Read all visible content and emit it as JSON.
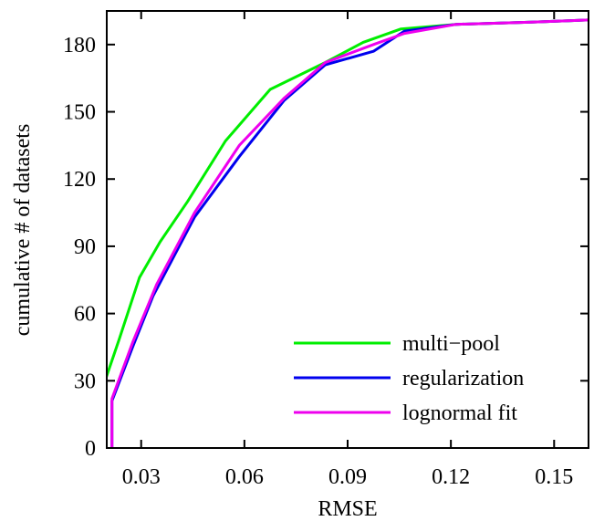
{
  "chart_data": {
    "type": "line",
    "title": "",
    "xlabel": "RMSE",
    "ylabel": "cumulative # of datasets",
    "xlim": [
      0.02,
      0.16
    ],
    "ylim": [
      0,
      195
    ],
    "xticks": [
      0.03,
      0.06,
      0.09,
      0.12,
      0.15
    ],
    "xtick_labels": [
      "0.03",
      "0.06",
      "0.09",
      "0.12",
      "0.15"
    ],
    "yticks": [
      0,
      30,
      60,
      90,
      120,
      150,
      180
    ],
    "ytick_labels": [
      "0",
      "30",
      "60",
      "90",
      "120",
      "150",
      "180"
    ],
    "grid": false,
    "legend_position": "bottom-right",
    "series": [
      {
        "name": "multi−pool",
        "color": "#00ee00",
        "x": [
          0.0175,
          0.0175,
          0.0235,
          0.0295,
          0.0355,
          0.0435,
          0.0545,
          0.0675,
          0.0835,
          0.0945,
          0.1055,
          0.1215,
          0.1435,
          0.1605
        ],
        "y": [
          0,
          21,
          48,
          76,
          92,
          110,
          137,
          160,
          172,
          181,
          187,
          189,
          190,
          191
        ]
      },
      {
        "name": "regularization",
        "color": "#0000ee",
        "x": [
          0.0215,
          0.0215,
          0.0275,
          0.0335,
          0.0455,
          0.0585,
          0.0715,
          0.0835,
          0.0975,
          0.1065,
          0.1215,
          0.1435,
          0.1605
        ],
        "y": [
          0,
          21,
          45,
          68,
          103,
          130,
          155,
          171,
          177,
          186,
          189,
          190,
          191
        ]
      },
      {
        "name": "lognormal fit",
        "color": "#ee00ee",
        "x": [
          0.0215,
          0.0215,
          0.0275,
          0.0345,
          0.0455,
          0.0585,
          0.0715,
          0.0835,
          0.0975,
          0.1065,
          0.1215,
          0.1435,
          0.1605
        ],
        "y": [
          0,
          22,
          47,
          73,
          105,
          135,
          156,
          172,
          180,
          185,
          189,
          190,
          191
        ]
      }
    ]
  }
}
